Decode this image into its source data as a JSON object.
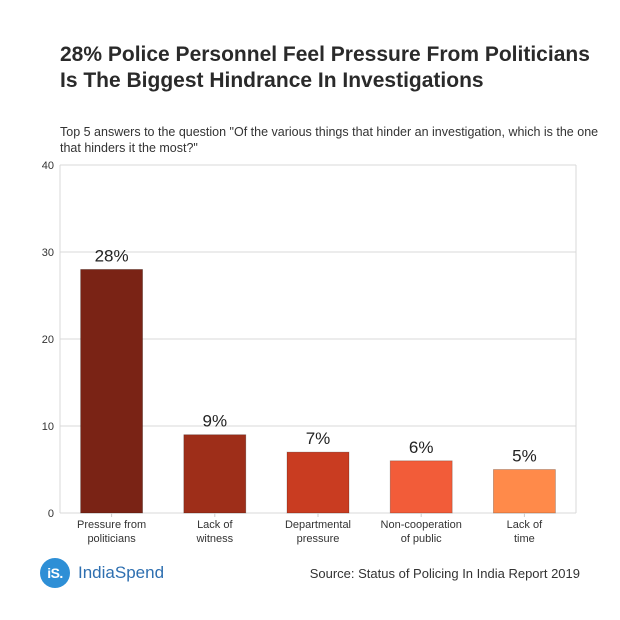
{
  "header": {
    "title": "28% Police Personnel Feel Pressure From Politicians Is The Biggest Hindrance In Investigations",
    "subtitle": "Top 5 answers to the question \"Of the various things that hinder an investigation, which is the one that hinders it the most?\""
  },
  "chart_data": {
    "type": "bar",
    "title": "28% Police Personnel Feel Pressure From Politicians Is The Biggest Hindrance In Investigations",
    "xlabel": "",
    "ylabel": "",
    "ylim": [
      0,
      40
    ],
    "yticks": [
      "0",
      "10",
      "20",
      "30",
      "40"
    ],
    "grid": true,
    "categories": [
      [
        "Pressure from",
        "politicians"
      ],
      [
        "Lack of",
        "witness"
      ],
      [
        "Departmental",
        "pressure"
      ],
      [
        "Non-cooperation",
        "of public"
      ],
      [
        "Lack of",
        "time"
      ]
    ],
    "values": [
      28,
      9,
      7,
      6,
      5
    ],
    "data_labels": [
      "28%",
      "9%",
      "7%",
      "6%",
      "5%"
    ],
    "colors": [
      "#7a2315",
      "#9e2e19",
      "#c93c21",
      "#f25c39",
      "#ff8a4a"
    ]
  },
  "footer": {
    "logo_mark": "iS.",
    "logo_text": "IndiaSpend",
    "source": "Source: Status of Policing In India Report 2019"
  }
}
